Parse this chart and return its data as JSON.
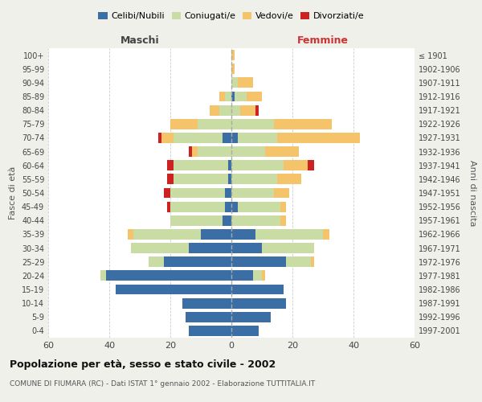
{
  "age_groups": [
    "0-4",
    "5-9",
    "10-14",
    "15-19",
    "20-24",
    "25-29",
    "30-34",
    "35-39",
    "40-44",
    "45-49",
    "50-54",
    "55-59",
    "60-64",
    "65-69",
    "70-74",
    "75-79",
    "80-84",
    "85-89",
    "90-94",
    "95-99",
    "100+"
  ],
  "birth_years": [
    "1997-2001",
    "1992-1996",
    "1987-1991",
    "1982-1986",
    "1977-1981",
    "1972-1976",
    "1967-1971",
    "1962-1966",
    "1957-1961",
    "1952-1956",
    "1947-1951",
    "1942-1946",
    "1937-1941",
    "1932-1936",
    "1927-1931",
    "1922-1926",
    "1917-1921",
    "1912-1916",
    "1907-1911",
    "1902-1906",
    "≤ 1901"
  ],
  "males": {
    "celibi": [
      14,
      15,
      16,
      38,
      41,
      22,
      14,
      10,
      3,
      2,
      2,
      1,
      1,
      0,
      3,
      0,
      0,
      0,
      0,
      0,
      0
    ],
    "coniugati": [
      0,
      0,
      0,
      0,
      2,
      5,
      19,
      22,
      17,
      18,
      18,
      18,
      18,
      11,
      16,
      11,
      4,
      2,
      0,
      0,
      0
    ],
    "vedovi": [
      0,
      0,
      0,
      0,
      0,
      0,
      0,
      2,
      0,
      0,
      0,
      0,
      0,
      2,
      4,
      9,
      3,
      2,
      0,
      0,
      0
    ],
    "divorziati": [
      0,
      0,
      0,
      0,
      0,
      0,
      0,
      0,
      0,
      1,
      2,
      2,
      2,
      1,
      1,
      0,
      0,
      0,
      0,
      0,
      0
    ]
  },
  "females": {
    "nubili": [
      9,
      13,
      18,
      17,
      7,
      18,
      10,
      8,
      0,
      2,
      0,
      0,
      0,
      0,
      2,
      0,
      0,
      1,
      0,
      0,
      0
    ],
    "coniugate": [
      0,
      0,
      0,
      0,
      3,
      8,
      17,
      22,
      16,
      14,
      14,
      15,
      17,
      11,
      13,
      14,
      3,
      4,
      2,
      0,
      0
    ],
    "vedove": [
      0,
      0,
      0,
      0,
      1,
      1,
      0,
      2,
      2,
      2,
      5,
      8,
      8,
      11,
      27,
      19,
      5,
      5,
      5,
      1,
      1
    ],
    "divorziate": [
      0,
      0,
      0,
      0,
      0,
      0,
      0,
      0,
      0,
      0,
      0,
      0,
      2,
      0,
      0,
      0,
      1,
      0,
      0,
      0,
      0
    ]
  },
  "colors": {
    "celibi_nubili": "#3a6ea5",
    "coniugati": "#c8dca4",
    "vedovi": "#f5c46a",
    "divorziati": "#cc2222"
  },
  "xlim": 60,
  "title": "Popolazione per età, sesso e stato civile - 2002",
  "subtitle": "COMUNE DI FIUMARA (RC) - Dati ISTAT 1° gennaio 2002 - Elaborazione TUTTITALIA.IT",
  "xlabel_left": "Maschi",
  "xlabel_right": "Femmine",
  "ylabel_left": "Fasce di età",
  "ylabel_right": "Anni di nascita",
  "bg_color": "#f0f0eb",
  "plot_bg": "#ffffff"
}
